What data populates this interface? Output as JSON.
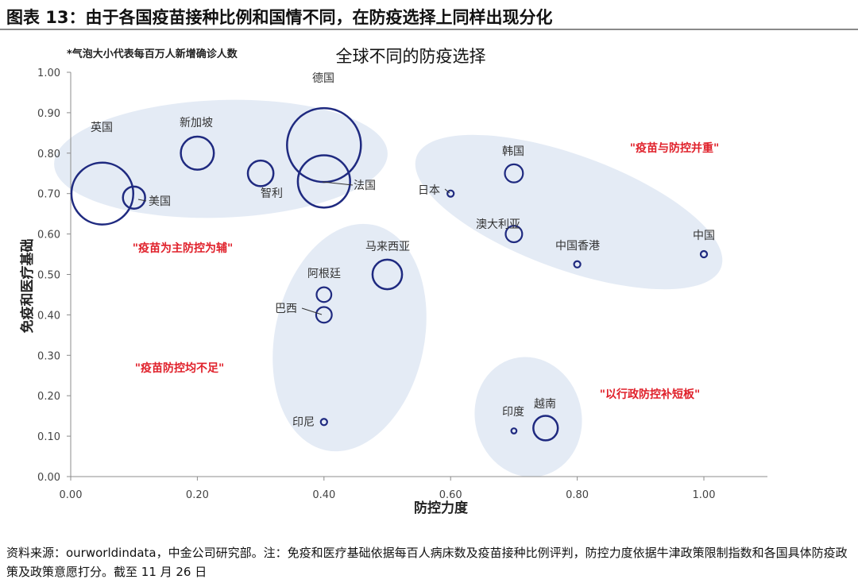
{
  "figure_title": "图表 13：由于各国疫苗接种比例和国情不同，在防疫选择上同样出现分化",
  "source_note": "资料来源：ourworldindata，中金公司研究部。注：免疫和医疗基础依据每百人病床数及疫苗接种比例评判，防控力度依据牛津政策限制指数和各国具体防疫政策及政策意愿打分。截至 11 月 26 日",
  "chart_data": {
    "type": "scatter",
    "subtype": "bubble",
    "title": "全球不同的防疫选择",
    "bubble_note": "*气泡大小代表每百万人新增确诊人数",
    "xlabel": "防控力度",
    "ylabel": "免疫和医疗基础",
    "xlim": [
      0,
      1.1
    ],
    "ylim": [
      0,
      1
    ],
    "x_ticks": [
      "0.00",
      "0.20",
      "0.40",
      "0.60",
      "0.80",
      "1.00"
    ],
    "y_ticks": [
      "0.00",
      "0.10",
      "0.20",
      "0.30",
      "0.40",
      "0.50",
      "0.60",
      "0.70",
      "0.80",
      "0.90",
      "1.00"
    ],
    "grid": false,
    "bubble_color": "#1f2a80",
    "points": [
      {
        "name": "德国",
        "x": 0.4,
        "y": 0.82,
        "size": 20
      },
      {
        "name": "英国",
        "x": 0.05,
        "y": 0.7,
        "size": 14
      },
      {
        "name": "法国",
        "x": 0.4,
        "y": 0.73,
        "size": 10
      },
      {
        "name": "新加坡",
        "x": 0.2,
        "y": 0.8,
        "size": 4
      },
      {
        "name": "马来西亚",
        "x": 0.5,
        "y": 0.5,
        "size": 3.2
      },
      {
        "name": "智利",
        "x": 0.3,
        "y": 0.75,
        "size": 2.4
      },
      {
        "name": "越南",
        "x": 0.75,
        "y": 0.12,
        "size": 2.2
      },
      {
        "name": "美国",
        "x": 0.1,
        "y": 0.69,
        "size": 1.8
      },
      {
        "name": "韩国",
        "x": 0.7,
        "y": 0.75,
        "size": 1.2
      },
      {
        "name": "澳大利亚",
        "x": 0.7,
        "y": 0.6,
        "size": 1.0
      },
      {
        "name": "巴西",
        "x": 0.4,
        "y": 0.4,
        "size": 0.9
      },
      {
        "name": "阿根廷",
        "x": 0.4,
        "y": 0.45,
        "size": 0.8
      },
      {
        "name": "日本",
        "x": 0.6,
        "y": 0.7,
        "size": 0.15
      },
      {
        "name": "中国香港",
        "x": 0.8,
        "y": 0.525,
        "size": 0.15
      },
      {
        "name": "中国",
        "x": 1.0,
        "y": 0.55,
        "size": 0.15
      },
      {
        "name": "印尼",
        "x": 0.4,
        "y": 0.135,
        "size": 0.15
      },
      {
        "name": "印度",
        "x": 0.7,
        "y": 0.113,
        "size": 0.1
      }
    ],
    "groups": [
      {
        "label": "\"疫苗为主防控为辅\"",
        "members": [
          "英国",
          "美国",
          "新加坡",
          "智利",
          "德国",
          "法国"
        ]
      },
      {
        "label": "\"疫苗与防控并重\"",
        "members": [
          "日本",
          "韩国",
          "澳大利亚",
          "中国香港",
          "中国"
        ]
      },
      {
        "label": "\"疫苗防控均不足\"",
        "members": [
          "马来西亚",
          "阿根廷",
          "巴西",
          "印尼"
        ]
      },
      {
        "label": "\"以行政防控补短板\"",
        "members": [
          "印度",
          "越南"
        ]
      }
    ],
    "group_label_color": "#e0202a",
    "ellipse_color": "#dfe7f3"
  }
}
